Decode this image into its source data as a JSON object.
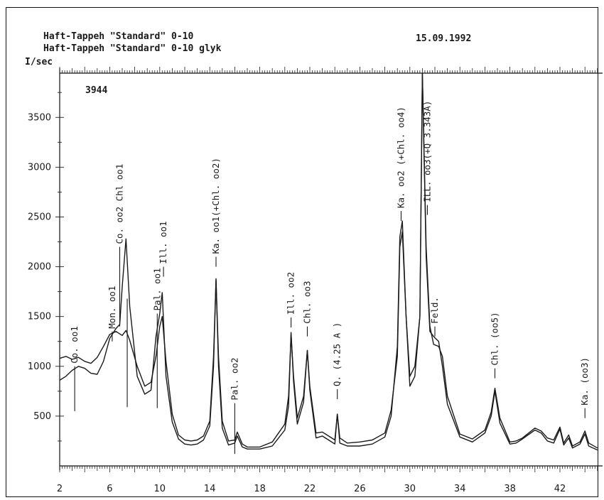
{
  "header": {
    "line1": "Haft-Tappeh \"Standard\" 0-10",
    "line2": "Haft-Tappeh \"Standard\" 0-10 glyk",
    "date": "15.09.1992"
  },
  "chart_data": {
    "type": "line",
    "ylabel": "I/sec",
    "ymax_label": "3944",
    "xlim": [
      2,
      45
    ],
    "ylim": [
      0,
      3944
    ],
    "x_ticks": [
      2,
      6,
      10,
      14,
      18,
      22,
      26,
      30,
      34,
      38,
      42
    ],
    "y_ticks": [
      500,
      1000,
      1500,
      2000,
      2500,
      3000,
      3500
    ],
    "grid": false,
    "series": [
      {
        "name": "Haft-Tappeh \"Standard\" 0-10",
        "points": [
          [
            2,
            1080
          ],
          [
            2.5,
            1100
          ],
          [
            3,
            1070
          ],
          [
            3.5,
            1090
          ],
          [
            4,
            1050
          ],
          [
            4.5,
            1030
          ],
          [
            5,
            1090
          ],
          [
            5.5,
            1200
          ],
          [
            6,
            1320
          ],
          [
            6.5,
            1350
          ],
          [
            7,
            1310
          ],
          [
            7.3,
            1360
          ],
          [
            7.6,
            1260
          ],
          [
            8.2,
            1000
          ],
          [
            8.8,
            800
          ],
          [
            9.3,
            840
          ],
          [
            9.7,
            1100
          ],
          [
            10,
            1400
          ],
          [
            10.2,
            1500
          ],
          [
            10.5,
            1050
          ],
          [
            11,
            520
          ],
          [
            11.5,
            310
          ],
          [
            12,
            260
          ],
          [
            12.5,
            250
          ],
          [
            13,
            260
          ],
          [
            13.5,
            300
          ],
          [
            14,
            450
          ],
          [
            14.3,
            1100
          ],
          [
            14.5,
            1870
          ],
          [
            14.7,
            1100
          ],
          [
            15,
            450
          ],
          [
            15.5,
            250
          ],
          [
            16,
            260
          ],
          [
            16.2,
            340
          ],
          [
            16.6,
            220
          ],
          [
            17,
            190
          ],
          [
            18,
            190
          ],
          [
            19,
            240
          ],
          [
            19.5,
            330
          ],
          [
            20,
            420
          ],
          [
            20.3,
            700
          ],
          [
            20.5,
            1320
          ],
          [
            20.7,
            900
          ],
          [
            21,
            480
          ],
          [
            21.5,
            700
          ],
          [
            21.8,
            1160
          ],
          [
            22,
            800
          ],
          [
            22.5,
            330
          ],
          [
            23,
            340
          ],
          [
            23.5,
            300
          ],
          [
            24,
            260
          ],
          [
            24.2,
            520
          ],
          [
            24.4,
            280
          ],
          [
            25,
            230
          ],
          [
            26,
            240
          ],
          [
            27,
            260
          ],
          [
            28,
            330
          ],
          [
            28.5,
            560
          ],
          [
            29,
            1100
          ],
          [
            29.2,
            2200
          ],
          [
            29.4,
            2350
          ],
          [
            29.7,
            1500
          ],
          [
            30,
            900
          ],
          [
            30.4,
            1000
          ],
          [
            30.8,
            1500
          ],
          [
            31,
            3944
          ],
          [
            31.3,
            2200
          ],
          [
            31.6,
            1400
          ],
          [
            31.9,
            1220
          ],
          [
            32.3,
            1200
          ],
          [
            32.6,
            1100
          ],
          [
            33,
            700
          ],
          [
            34,
            320
          ],
          [
            35,
            270
          ],
          [
            36,
            360
          ],
          [
            36.5,
            540
          ],
          [
            36.8,
            780
          ],
          [
            37.2,
            480
          ],
          [
            38,
            240
          ],
          [
            38.5,
            250
          ],
          [
            39,
            280
          ],
          [
            40,
            380
          ],
          [
            40.5,
            350
          ],
          [
            41,
            280
          ],
          [
            41.5,
            260
          ],
          [
            42,
            390
          ],
          [
            42.3,
            230
          ],
          [
            42.7,
            310
          ],
          [
            43,
            200
          ],
          [
            43.6,
            240
          ],
          [
            44,
            350
          ],
          [
            44.3,
            230
          ],
          [
            45,
            180
          ]
        ]
      },
      {
        "name": "Haft-Tappeh \"Standard\" 0-10 glyk",
        "points": [
          [
            2,
            860
          ],
          [
            2.5,
            900
          ],
          [
            3,
            960
          ],
          [
            3.5,
            1000
          ],
          [
            4,
            980
          ],
          [
            4.5,
            930
          ],
          [
            5,
            920
          ],
          [
            5.5,
            1050
          ],
          [
            6,
            1280
          ],
          [
            6.5,
            1380
          ],
          [
            6.8,
            1420
          ],
          [
            7,
            1800
          ],
          [
            7.3,
            2280
          ],
          [
            7.6,
            1600
          ],
          [
            8.2,
            900
          ],
          [
            8.8,
            720
          ],
          [
            9.3,
            760
          ],
          [
            9.7,
            1300
          ],
          [
            10,
            1530
          ],
          [
            10.2,
            1740
          ],
          [
            10.5,
            900
          ],
          [
            11,
            440
          ],
          [
            11.5,
            270
          ],
          [
            12,
            220
          ],
          [
            12.5,
            210
          ],
          [
            13,
            220
          ],
          [
            13.5,
            260
          ],
          [
            14,
            400
          ],
          [
            14.3,
            1000
          ],
          [
            14.5,
            1880
          ],
          [
            14.7,
            1000
          ],
          [
            15,
            380
          ],
          [
            15.5,
            210
          ],
          [
            16,
            230
          ],
          [
            16.2,
            300
          ],
          [
            16.6,
            190
          ],
          [
            17,
            170
          ],
          [
            18,
            170
          ],
          [
            19,
            200
          ],
          [
            19.5,
            280
          ],
          [
            20,
            360
          ],
          [
            20.3,
            600
          ],
          [
            20.5,
            1340
          ],
          [
            20.7,
            850
          ],
          [
            21,
            420
          ],
          [
            21.5,
            640
          ],
          [
            21.8,
            1160
          ],
          [
            22,
            760
          ],
          [
            22.5,
            280
          ],
          [
            23,
            300
          ],
          [
            23.5,
            260
          ],
          [
            24,
            220
          ],
          [
            24.2,
            520
          ],
          [
            24.4,
            230
          ],
          [
            25,
            200
          ],
          [
            26,
            200
          ],
          [
            27,
            220
          ],
          [
            28,
            290
          ],
          [
            28.5,
            500
          ],
          [
            29,
            1200
          ],
          [
            29.2,
            2300
          ],
          [
            29.4,
            2460
          ],
          [
            29.7,
            1500
          ],
          [
            30,
            800
          ],
          [
            30.4,
            900
          ],
          [
            30.8,
            1500
          ],
          [
            31,
            3944
          ],
          [
            31.3,
            2100
          ],
          [
            31.6,
            1350
          ],
          [
            31.9,
            1300
          ],
          [
            32.3,
            1250
          ],
          [
            32.6,
            1000
          ],
          [
            33,
            620
          ],
          [
            34,
            290
          ],
          [
            35,
            240
          ],
          [
            36,
            330
          ],
          [
            36.5,
            500
          ],
          [
            36.8,
            750
          ],
          [
            37.2,
            430
          ],
          [
            38,
            220
          ],
          [
            38.5,
            230
          ],
          [
            39,
            270
          ],
          [
            40,
            360
          ],
          [
            40.5,
            330
          ],
          [
            41,
            250
          ],
          [
            41.5,
            230
          ],
          [
            42,
            370
          ],
          [
            42.3,
            210
          ],
          [
            42.7,
            280
          ],
          [
            43,
            180
          ],
          [
            43.6,
            220
          ],
          [
            44,
            320
          ],
          [
            44.3,
            200
          ],
          [
            45,
            160
          ]
        ]
      }
    ],
    "annotations": [
      {
        "text": "Co. oo1",
        "x": 3.2,
        "y_top": 1000,
        "y_bottom": 550
      },
      {
        "text": "Mon. oo1",
        "x": 6.2,
        "y_top": 1350,
        "y_bottom": 1350
      },
      {
        "text": "Co. oo2 Chl oo1",
        "x": 6.8,
        "y_top": 2200,
        "y_bottom": 1400
      },
      {
        "text": "",
        "x": 7.4,
        "y_top": 1680,
        "y_bottom": 590
      },
      {
        "text": "Pal. oo1",
        "x": 9.8,
        "y_top": 1530,
        "y_bottom": 580
      },
      {
        "text": "Ill. oo1",
        "x": 10.3,
        "y_top": 2000,
        "y_bottom": 2000
      },
      {
        "text": "Ka. oo1(+Chl. oo2)",
        "x": 14.5,
        "y_top": 2100,
        "y_bottom": 2100
      },
      {
        "text": "Pal. oo2",
        "x": 16.0,
        "y_top": 630,
        "y_bottom": 120
      },
      {
        "text": "Ill. oo2",
        "x": 20.5,
        "y_top": 1490,
        "y_bottom": 1490
      },
      {
        "text": "Chl. oo3",
        "x": 21.8,
        "y_top": 1400,
        "y_bottom": 1400
      },
      {
        "text": "Q. (4.25 A )",
        "x": 24.2,
        "y_top": 770,
        "y_bottom": 770
      },
      {
        "text": "Ka. oo2 (+Chl. oo4)",
        "x": 29.3,
        "y_top": 2560,
        "y_bottom": 2560
      },
      {
        "text": "ILL. oo3(+Q 3.343A)",
        "x": 31.4,
        "y_top": 2620,
        "y_bottom": 2620
      },
      {
        "text": "Feld.",
        "x": 32.0,
        "y_top": 1400,
        "y_bottom": 1400
      },
      {
        "text": "Chl. (oo5)",
        "x": 36.8,
        "y_top": 980,
        "y_bottom": 980
      },
      {
        "text": "Ka. (oo3)",
        "x": 44.0,
        "y_top": 580,
        "y_bottom": 580
      }
    ]
  }
}
